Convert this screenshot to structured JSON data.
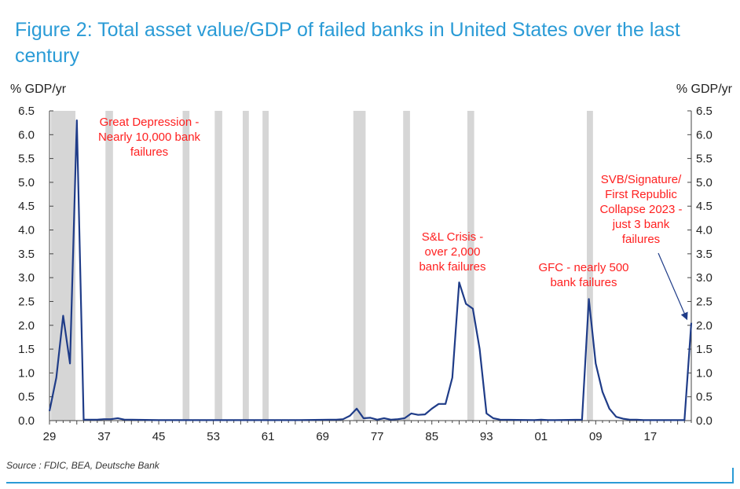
{
  "title": "Figure 2: Total asset value/GDP of failed banks in United States over the last century",
  "source": "Source : FDIC, BEA, Deutsche Bank",
  "chart_data": {
    "type": "line",
    "title": "Figure 2: Total asset value/GDP of failed banks in United States over the last century",
    "ylabel_left": "% GDP/yr",
    "ylabel_right": "% GDP/yr",
    "ylim": [
      0,
      6.5
    ],
    "yticks": [
      "0.0",
      "0.5",
      "1.0",
      "1.5",
      "2.0",
      "2.5",
      "3.0",
      "3.5",
      "4.0",
      "4.5",
      "5.0",
      "5.5",
      "6.0",
      "6.5"
    ],
    "xlim": [
      1929,
      2023
    ],
    "xticks": [
      {
        "year": 1929,
        "label": "29"
      },
      {
        "year": 1937,
        "label": "37"
      },
      {
        "year": 1945,
        "label": "45"
      },
      {
        "year": 1953,
        "label": "53"
      },
      {
        "year": 1961,
        "label": "61"
      },
      {
        "year": 1969,
        "label": "69"
      },
      {
        "year": 1977,
        "label": "77"
      },
      {
        "year": 1985,
        "label": "85"
      },
      {
        "year": 1993,
        "label": "93"
      },
      {
        "year": 2001,
        "label": "01"
      },
      {
        "year": 2009,
        "label": "09"
      },
      {
        "year": 2017,
        "label": "17"
      }
    ],
    "recessions": [
      [
        1929.2,
        1932.8
      ],
      [
        1937.2,
        1938.3
      ],
      [
        1948.5,
        1949.5
      ],
      [
        1953.2,
        1954.3
      ],
      [
        1957.3,
        1958.2
      ],
      [
        1960.2,
        1961.1
      ],
      [
        1973.5,
        1975.3
      ],
      [
        1980.8,
        1981.8
      ],
      [
        1990.2,
        1991.2
      ],
      [
        2007.7,
        2008.6
      ]
    ],
    "series": [
      {
        "name": "Total asset value/GDP of failed banks",
        "color": "#1f3c88",
        "x": [
          1929,
          1930,
          1931,
          1932,
          1933,
          1934,
          1935,
          1936,
          1937,
          1938,
          1939,
          1940,
          1941,
          1945,
          1955,
          1965,
          1970,
          1971,
          1972,
          1973,
          1974,
          1975,
          1976,
          1977,
          1978,
          1979,
          1980,
          1981,
          1982,
          1983,
          1984,
          1985,
          1986,
          1987,
          1988,
          1989,
          1990,
          1991,
          1992,
          1993,
          1994,
          1995,
          2000,
          2001,
          2002,
          2003,
          2007,
          2008,
          2009,
          2010,
          2011,
          2012,
          2013,
          2014,
          2015,
          2016,
          2017,
          2018,
          2021,
          2022,
          2023
        ],
        "values": [
          0.2,
          0.9,
          2.2,
          1.2,
          6.3,
          0.02,
          0.02,
          0.02,
          0.03,
          0.03,
          0.05,
          0.02,
          0.02,
          0.01,
          0.01,
          0.01,
          0.02,
          0.02,
          0.03,
          0.1,
          0.25,
          0.05,
          0.06,
          0.02,
          0.05,
          0.02,
          0.03,
          0.05,
          0.15,
          0.12,
          0.13,
          0.25,
          0.35,
          0.35,
          0.9,
          2.9,
          2.45,
          2.35,
          1.5,
          0.15,
          0.05,
          0.02,
          0.01,
          0.02,
          0.01,
          0.01,
          0.02,
          2.55,
          1.2,
          0.6,
          0.25,
          0.08,
          0.04,
          0.02,
          0.02,
          0.01,
          0.01,
          0.01,
          0.01,
          0.01,
          2.05
        ]
      }
    ],
    "annotations": [
      {
        "id": "great-depression",
        "lines": [
          "Great Depression -",
          "Nearly 10,000 bank",
          "failures"
        ]
      },
      {
        "id": "sl-crisis",
        "lines": [
          "S&L Crisis -",
          "over 2,000",
          "bank failures"
        ]
      },
      {
        "id": "gfc",
        "lines": [
          "GFC - nearly 500",
          "bank failures"
        ]
      },
      {
        "id": "svb",
        "lines": [
          "SVB/Signature/",
          "First Republic",
          "Collapse 2023 -",
          "just 3 bank",
          "failures"
        ]
      }
    ]
  }
}
